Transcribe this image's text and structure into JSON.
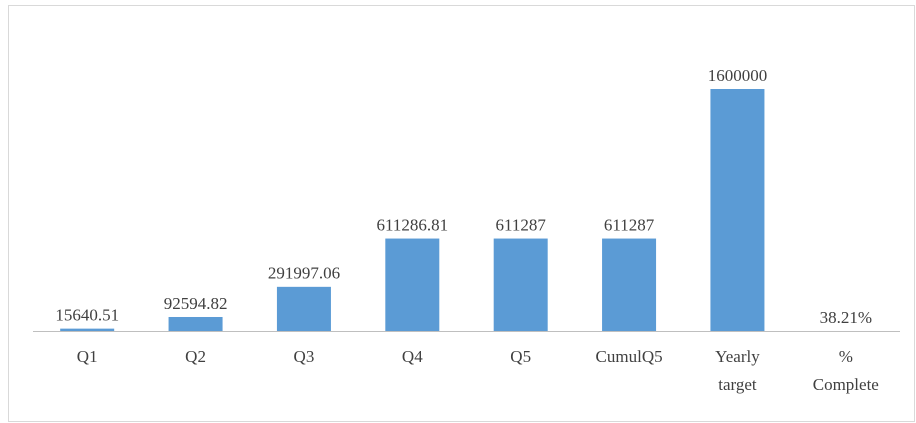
{
  "chart_data": {
    "type": "bar",
    "categories": [
      "Q1",
      "Q2",
      "Q3",
      "Q4",
      "Q5",
      "CumulQ5",
      "Yearly target",
      "% Complete"
    ],
    "values": [
      15640.51,
      92594.82,
      291997.06,
      611286.81,
      611287,
      611287,
      1600000,
      38.21
    ],
    "value_labels": [
      "15640.51",
      "92594.82",
      "291997.06",
      "611286.81",
      "611287",
      "611287",
      "1600000",
      "38.21%"
    ],
    "color": "#5b9bd5"
  }
}
